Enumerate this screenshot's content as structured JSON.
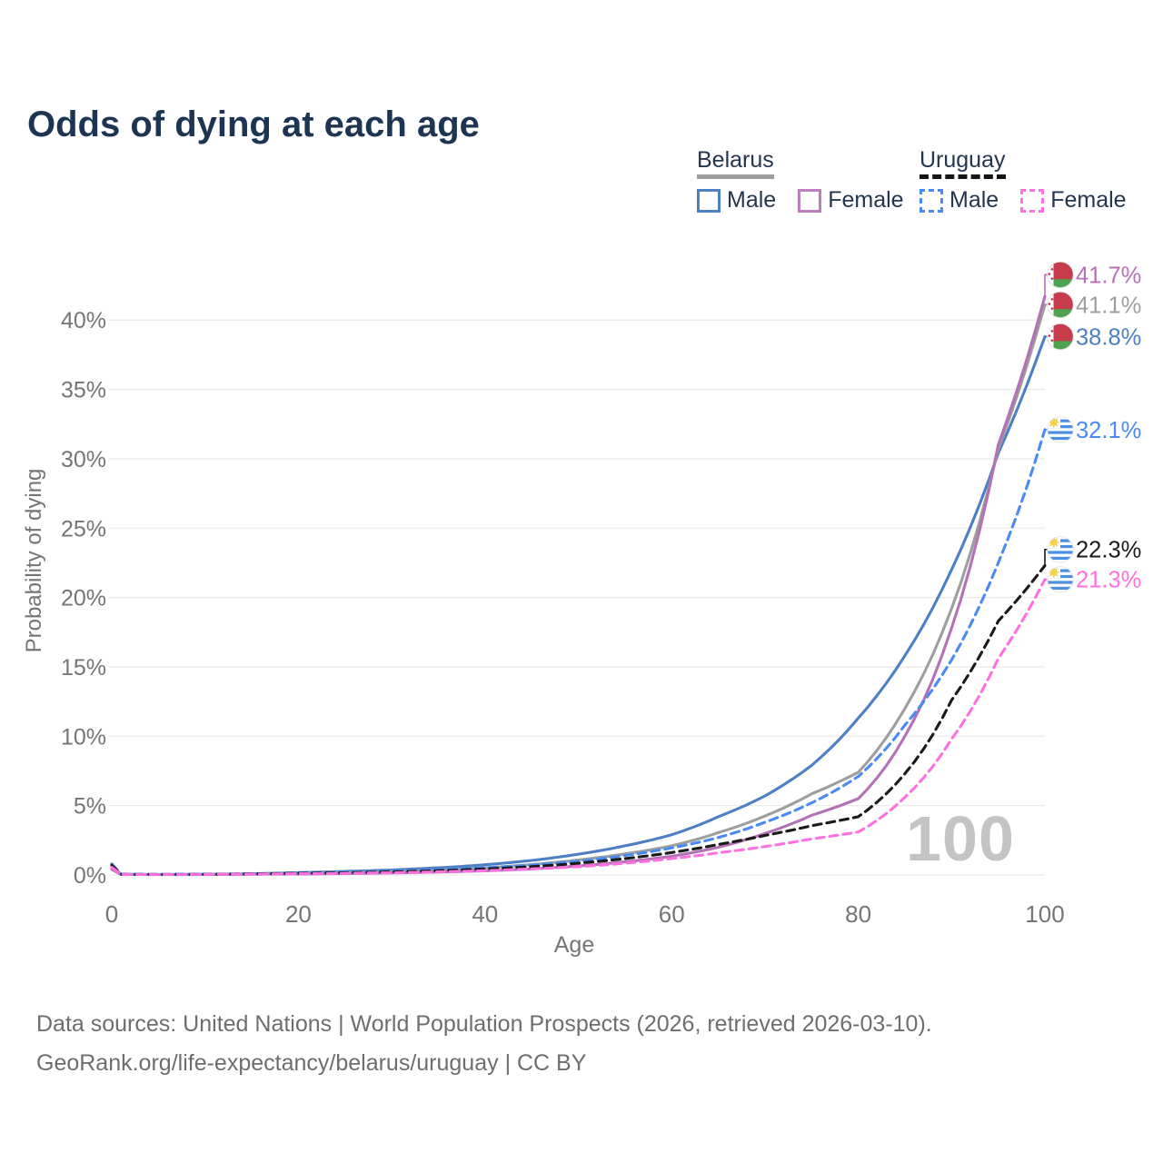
{
  "title": "Odds of dying at each age",
  "watermark": "100",
  "legend": {
    "belarus": {
      "label": "Belarus",
      "line_style": "solid",
      "underline_color": "#9e9e9e",
      "items": [
        {
          "label": "Male",
          "color": "#4d7fc4",
          "dash": "solid"
        },
        {
          "label": "Female",
          "color": "#bd7ebe",
          "dash": "solid"
        }
      ]
    },
    "uruguay": {
      "label": "Uruguay",
      "line_style": "dashed",
      "underline_color": "#151515",
      "items": [
        {
          "label": "Male",
          "color": "#4a8af2",
          "dash": "dashed"
        },
        {
          "label": "Female",
          "color": "#ff70df",
          "dash": "dashed"
        }
      ]
    }
  },
  "footer": {
    "line1": "Data sources: United Nations | World Population Prospects (2026, retrieved 2026-03-10).",
    "line2": "GeoRank.org/life-expectancy/belarus/uruguay | CC BY"
  },
  "chart_data": {
    "type": "line",
    "title": "Odds of dying at each age",
    "xlabel": "Age",
    "ylabel": "Probability of dying",
    "xlim": [
      0,
      100
    ],
    "ylim": [
      0,
      43
    ],
    "grid": true,
    "legend_position": "top-right",
    "x_ticks": [
      0,
      20,
      40,
      60,
      80,
      100
    ],
    "y_ticks": [
      {
        "value": 0,
        "label": "0%"
      },
      {
        "value": 5,
        "label": "5%"
      },
      {
        "value": 10,
        "label": "10%"
      },
      {
        "value": 15,
        "label": "15%"
      },
      {
        "value": 20,
        "label": "20%"
      },
      {
        "value": 25,
        "label": "25%"
      },
      {
        "value": 30,
        "label": "30%"
      },
      {
        "value": 35,
        "label": "35%"
      },
      {
        "value": 40,
        "label": "40%"
      }
    ],
    "ages": [
      0,
      1,
      5,
      10,
      15,
      20,
      25,
      30,
      35,
      40,
      45,
      50,
      55,
      60,
      65,
      70,
      75,
      80,
      85,
      90,
      95,
      100
    ],
    "series": [
      {
        "name": "Belarus Female",
        "country": "Belarus",
        "sex": "Female",
        "color": "#b571b5",
        "dash": "solid",
        "flag": "belarus",
        "end_label": "41.7%",
        "end_value": 41.7,
        "values": [
          0.4,
          0.035,
          0.025,
          0.03,
          0.05,
          0.07,
          0.1,
          0.15,
          0.21,
          0.3,
          0.44,
          0.65,
          0.95,
          1.35,
          2.0,
          3.0,
          4.3,
          5.5,
          10.0,
          17.8,
          31.0,
          41.7
        ]
      },
      {
        "name": "Belarus",
        "country": "Belarus",
        "sex": "Both",
        "color": "#9e9e9e",
        "dash": "solid",
        "flag": "belarus",
        "end_label": "41.1%",
        "end_value": 41.1,
        "values": [
          0.5,
          0.04,
          0.03,
          0.04,
          0.07,
          0.12,
          0.18,
          0.25,
          0.36,
          0.52,
          0.75,
          1.08,
          1.52,
          2.1,
          3.05,
          4.25,
          5.85,
          7.4,
          12.0,
          19.2,
          30.7,
          41.1
        ]
      },
      {
        "name": "Belarus Male",
        "country": "Belarus",
        "sex": "Male",
        "color": "#4d7fc4",
        "dash": "solid",
        "flag": "belarus",
        "end_label": "38.8%",
        "end_value": 38.8,
        "values": [
          0.6,
          0.05,
          0.04,
          0.05,
          0.09,
          0.17,
          0.26,
          0.36,
          0.52,
          0.74,
          1.05,
          1.5,
          2.1,
          2.9,
          4.2,
          5.7,
          7.9,
          11.3,
          15.8,
          22.0,
          30.4,
          38.8
        ]
      },
      {
        "name": "Uruguay Male",
        "country": "Uruguay",
        "sex": "Male",
        "color": "#4a8af2",
        "dash": "dashed",
        "flag": "uruguay",
        "end_label": "32.1%",
        "end_value": 32.1,
        "values": [
          0.8,
          0.05,
          0.04,
          0.05,
          0.09,
          0.15,
          0.2,
          0.27,
          0.38,
          0.52,
          0.72,
          1.0,
          1.4,
          1.95,
          2.7,
          3.8,
          5.2,
          7.1,
          10.8,
          15.5,
          22.5,
          32.1
        ]
      },
      {
        "name": "Uruguay",
        "country": "Uruguay",
        "sex": "Both",
        "color": "#1a1a1a",
        "dash": "dashed",
        "flag": "uruguay",
        "end_label": "22.3%",
        "end_value": 22.3,
        "values": [
          0.7,
          0.045,
          0.035,
          0.045,
          0.08,
          0.12,
          0.16,
          0.22,
          0.31,
          0.44,
          0.6,
          0.85,
          1.18,
          1.62,
          2.2,
          2.85,
          3.55,
          4.2,
          7.3,
          12.6,
          18.3,
          22.3
        ]
      },
      {
        "name": "Uruguay Female",
        "country": "Uruguay",
        "sex": "Female",
        "color": "#ff70df",
        "dash": "dashed",
        "flag": "uruguay",
        "end_label": "21.3%",
        "end_value": 21.3,
        "values": [
          0.55,
          0.04,
          0.03,
          0.04,
          0.06,
          0.09,
          0.12,
          0.16,
          0.22,
          0.31,
          0.44,
          0.6,
          0.85,
          1.18,
          1.6,
          2.05,
          2.6,
          3.1,
          5.6,
          9.8,
          15.6,
          21.3
        ]
      }
    ]
  }
}
